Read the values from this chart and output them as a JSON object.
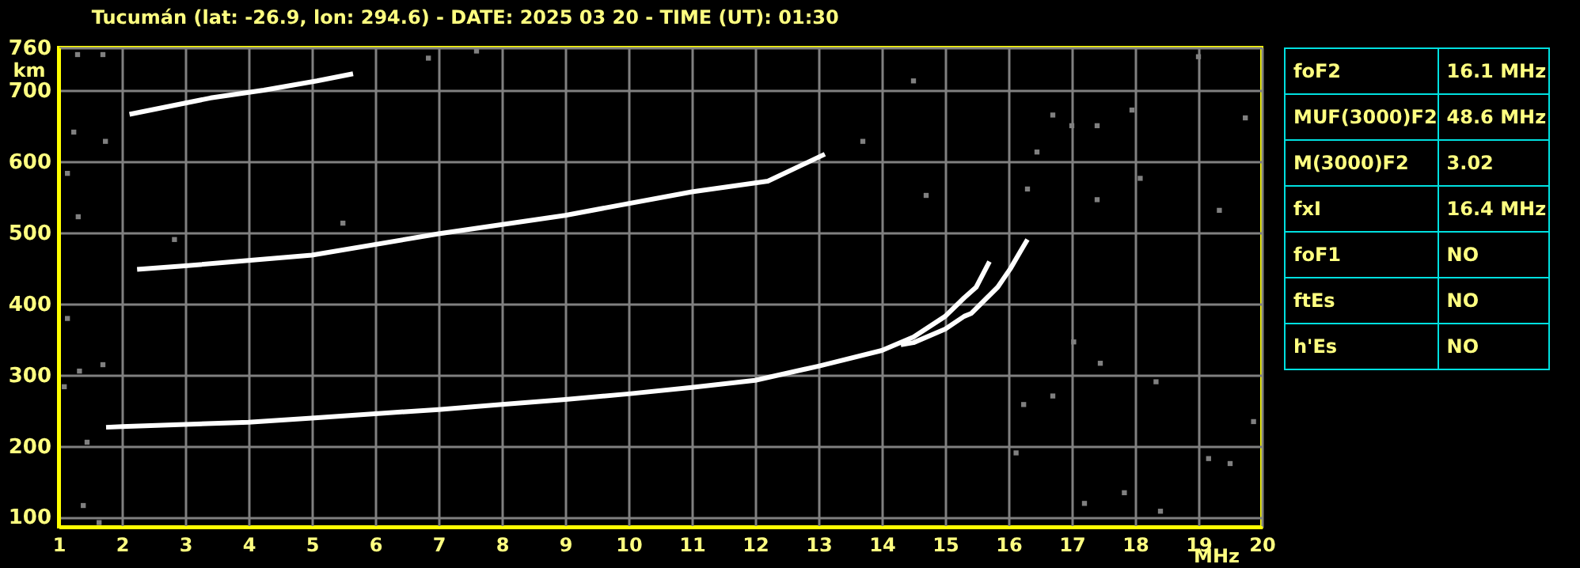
{
  "chart_data": [
    {
      "type": "line",
      "title": "Tucumán (lat: -26.9, lon: 294.6) - DATE: 2025 03 20 - TIME (UT): 01:30",
      "xlabel": "MHz",
      "ylabel": "km",
      "xlim": [
        1,
        20
      ],
      "ylim": [
        86,
        760
      ],
      "xticks": [
        1,
        2,
        3,
        4,
        5,
        6,
        7,
        8,
        9,
        10,
        11,
        12,
        13,
        14,
        15,
        16,
        17,
        18,
        19,
        20
      ],
      "yticks": [
        100,
        200,
        300,
        400,
        500,
        600,
        700,
        760
      ],
      "grid": true,
      "series": [
        {
          "type": "line",
          "color": "#ffffff",
          "x": [
            1.75,
            2,
            3,
            4,
            5,
            6,
            7,
            8,
            9,
            10,
            11,
            12,
            13,
            14,
            14.5,
            15,
            15.3,
            15.49,
            15.7
          ],
          "values": [
            226,
            227,
            230,
            233,
            239,
            245,
            251,
            258,
            265,
            273,
            282,
            292,
            312,
            334,
            353,
            382,
            408,
            423,
            459
          ]
        },
        {
          "type": "line",
          "color": "#ffffff",
          "x": [
            14.3,
            14.5,
            15,
            15.3,
            15.41,
            15.83,
            16.03,
            16.2,
            16.3
          ],
          "values": [
            342,
            345,
            364,
            382,
            386,
            423,
            449,
            475,
            490
          ]
        },
        {
          "type": "line",
          "color": "#ffffff",
          "x": [
            2.24,
            3,
            5,
            7,
            9,
            11,
            12.2,
            13.1
          ],
          "values": [
            448,
            453,
            468,
            498,
            524,
            557,
            572,
            610
          ]
        },
        {
          "type": "line",
          "color": "#ffffff",
          "x": [
            2.12,
            3.4,
            4.24,
            5.08,
            5.65
          ],
          "values": [
            666,
            689,
            700,
            713,
            723
          ]
        },
        {
          "type": "scatter",
          "color": "#808080",
          "marker": "square",
          "x": [
            1.3,
            1.7,
            1.24,
            1.74,
            1.14,
            1.31,
            2.83,
            5.49,
            6.84,
            7.6,
            1.09,
            1.33,
            1.45,
            1.7,
            1.64,
            1.39,
            1.14,
            16.7,
            17.4,
            17.95,
            19.0,
            19.74,
            17.0,
            16.3,
            18.08,
            19.33,
            17.4,
            16.45,
            14.5,
            13.7,
            14.7,
            16.24,
            16.7,
            17.83,
            18.4,
            19.16,
            19.5,
            17.03,
            18.33,
            19.87,
            17.45,
            16.12,
            17.2
          ],
          "values": [
            750,
            750,
            641,
            628,
            583,
            522,
            490,
            513,
            745,
            755,
            283,
            305,
            205,
            314,
            92,
            116,
            379,
            665,
            650,
            672,
            747,
            661,
            650,
            561,
            576,
            531,
            546,
            613,
            713,
            628,
            552,
            258,
            270,
            134,
            108,
            182,
            175,
            346,
            290,
            234,
            316,
            190,
            119
          ]
        }
      ]
    },
    {
      "type": "other",
      "annotations": [
        "foF2",
        "16.1 MHz",
        "MUF(3000)F2",
        "48.6 MHz",
        "M(3000)F2",
        "3.02",
        "fxI",
        "16.4 MHz",
        "foF1",
        "NO",
        "ftEs",
        "NO",
        "h'Es",
        "NO"
      ]
    }
  ]
}
